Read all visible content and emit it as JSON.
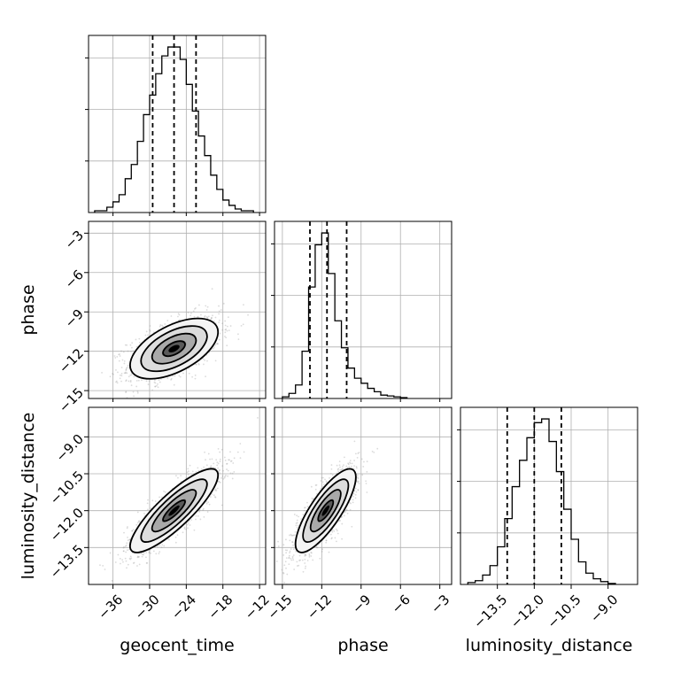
{
  "chart_data": {
    "type": "corner",
    "parameters": [
      "geocent_time",
      "phase",
      "luminosity_distance"
    ],
    "axis_labels": {
      "geocent_time": "geocent_time",
      "phase": "phase",
      "luminosity_distance": "luminosity_distance"
    },
    "ranges": {
      "geocent_time": [
        -40.0,
        -11.0
      ],
      "phase": [
        -15.6,
        -2.1
      ],
      "luminosity_distance": [
        -15.0,
        -7.8
      ]
    },
    "ticks": {
      "geocent_time": [
        "−36",
        "−30",
        "−24",
        "−18",
        "−12"
      ],
      "phase": [
        "−15",
        "−12",
        "−9",
        "−6",
        "−3"
      ],
      "luminosity_distance": [
        "−13.5",
        "−12.0",
        "−10.5",
        "−9.0"
      ]
    },
    "tick_values": {
      "geocent_time": [
        -36,
        -30,
        -24,
        -18,
        -12
      ],
      "phase": [
        -15,
        -12,
        -9,
        -6,
        -3
      ],
      "luminosity_distance": [
        -13.5,
        -12.0,
        -10.5,
        -9.0
      ]
    },
    "quantiles": {
      "geocent_time": [
        -29.5,
        -26.0,
        -22.4
      ],
      "phase": [
        -12.9,
        -11.6,
        -10.1
      ],
      "luminosity_distance": [
        -13.1,
        -12.0,
        -10.9
      ]
    },
    "histograms": {
      "geocent_time": {
        "edges": [
          -39,
          -38,
          -37,
          -36,
          -35,
          -34,
          -33,
          -32,
          -31,
          -30,
          -29,
          -28,
          -27,
          -26,
          -25,
          -24,
          -23,
          -22,
          -21,
          -20,
          -19,
          -18,
          -17,
          -16,
          -15,
          -14,
          -13
        ],
        "counts": [
          0.01,
          0.01,
          0.03,
          0.06,
          0.1,
          0.19,
          0.27,
          0.4,
          0.55,
          0.66,
          0.78,
          0.88,
          0.93,
          0.93,
          0.86,
          0.72,
          0.57,
          0.43,
          0.32,
          0.21,
          0.13,
          0.07,
          0.04,
          0.02,
          0.01,
          0.01
        ]
      },
      "phase": {
        "edges": [
          -15.0,
          -14.5,
          -14.0,
          -13.5,
          -13.0,
          -12.5,
          -12.0,
          -11.5,
          -11.0,
          -10.5,
          -10.0,
          -9.5,
          -9.0,
          -8.5,
          -8.0,
          -7.5,
          -7.0,
          -6.5,
          -6.0,
          -5.5
        ],
        "counts": [
          0.01,
          0.03,
          0.08,
          0.28,
          0.66,
          0.91,
          0.98,
          0.74,
          0.46,
          0.3,
          0.18,
          0.12,
          0.09,
          0.06,
          0.04,
          0.02,
          0.015,
          0.01,
          0.005
        ]
      },
      "luminosity_distance": {
        "edges": [
          -14.7,
          -14.4,
          -14.1,
          -13.8,
          -13.5,
          -13.2,
          -12.9,
          -12.6,
          -12.3,
          -12.0,
          -11.7,
          -11.4,
          -11.1,
          -10.8,
          -10.5,
          -10.2,
          -9.9,
          -9.6,
          -9.3,
          -9.0,
          -8.7
        ],
        "counts": [
          0.01,
          0.02,
          0.05,
          0.1,
          0.2,
          0.35,
          0.52,
          0.66,
          0.78,
          0.86,
          0.88,
          0.76,
          0.6,
          0.4,
          0.24,
          0.12,
          0.06,
          0.03,
          0.015,
          0.005
        ]
      }
    },
    "pairs": [
      {
        "x": "geocent_time",
        "y": "phase",
        "center": [
          -26.0,
          -11.8
        ],
        "sigma": [
          3.6,
          1.15
        ],
        "correlation": 0.55,
        "contour_levels_sigma": [
          0.5,
          1.0,
          1.5,
          2.0
        ]
      },
      {
        "x": "geocent_time",
        "y": "luminosity_distance",
        "center": [
          -26.0,
          -12.0
        ],
        "sigma": [
          3.6,
          0.85
        ],
        "correlation": 0.85,
        "contour_levels_sigma": [
          0.5,
          1.0,
          1.5,
          2.0
        ]
      },
      {
        "x": "phase",
        "y": "luminosity_distance",
        "center": [
          -11.7,
          -12.0
        ],
        "sigma": [
          1.15,
          0.85
        ],
        "correlation": 0.8,
        "contour_levels_sigma": [
          0.5,
          1.0,
          1.5,
          2.0
        ]
      }
    ],
    "grid": true,
    "line_color": "#000000",
    "scatter_color": "#999999"
  }
}
